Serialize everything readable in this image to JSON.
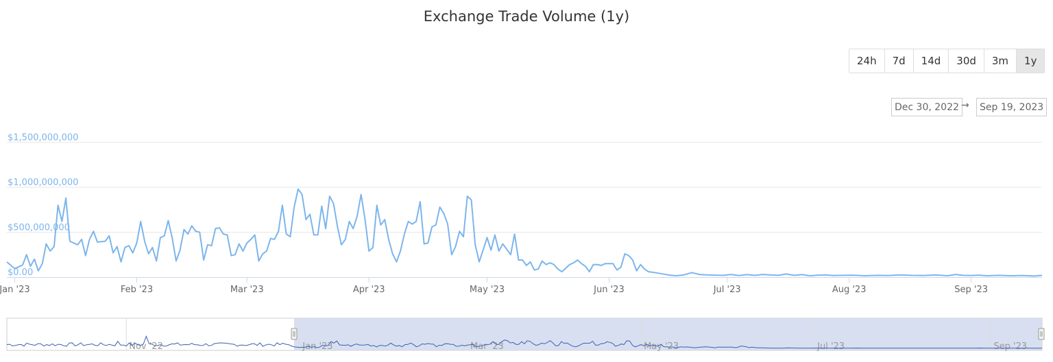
{
  "header": {
    "title": "Exchange Trade Volume (1y)"
  },
  "range_selector": {
    "buttons": [
      "24h",
      "7d",
      "14d",
      "30d",
      "3m",
      "1y"
    ],
    "active": "1y",
    "from": "Dec 30, 2022",
    "arrow": "→",
    "to": "Sep 19, 2023"
  },
  "colors": {
    "line": "#7cb5ec",
    "navigator_line": "#3a5fb0",
    "navigator_mask": "#d4dbef",
    "grid": "#e6e6e6"
  },
  "chart_data": {
    "type": "line",
    "title": "Exchange Trade Volume (1y)",
    "xlabel": "",
    "ylabel": "",
    "x_range": [
      "2022-12-30",
      "2023-09-19"
    ],
    "ylim": [
      0,
      1500000000
    ],
    "y_ticks": [
      0,
      500000000,
      1000000000,
      1500000000
    ],
    "y_tick_labels": [
      "$0.00",
      "$500,000,000",
      "$1,000,000,000",
      "$1,500,000,000"
    ],
    "x_ticks": [
      "2023-01-01",
      "2023-02-01",
      "2023-03-01",
      "2023-04-01",
      "2023-05-01",
      "2023-06-01",
      "2023-07-01",
      "2023-08-01",
      "2023-09-01"
    ],
    "x_tick_labels": [
      "Jan '23",
      "Feb '23",
      "Mar '23",
      "Apr '23",
      "May '23",
      "Jun '23",
      "Jul '23",
      "Aug '23",
      "Sep '23"
    ],
    "grid": true,
    "legend": "none",
    "series": [
      {
        "points": [
          [
            "2022-12-30",
            170000000
          ],
          [
            "2023-01-01",
            95000000
          ],
          [
            "2023-01-03",
            135000000
          ],
          [
            "2023-01-04",
            250000000
          ],
          [
            "2023-01-05",
            120000000
          ],
          [
            "2023-01-06",
            200000000
          ],
          [
            "2023-01-07",
            70000000
          ],
          [
            "2023-01-08",
            150000000
          ],
          [
            "2023-01-09",
            370000000
          ],
          [
            "2023-01-10",
            290000000
          ],
          [
            "2023-01-11",
            340000000
          ],
          [
            "2023-01-12",
            800000000
          ],
          [
            "2023-01-13",
            620000000
          ],
          [
            "2023-01-14",
            880000000
          ],
          [
            "2023-01-15",
            400000000
          ],
          [
            "2023-01-17",
            360000000
          ],
          [
            "2023-01-18",
            420000000
          ],
          [
            "2023-01-19",
            240000000
          ],
          [
            "2023-01-20",
            420000000
          ],
          [
            "2023-01-21",
            510000000
          ],
          [
            "2023-01-22",
            390000000
          ],
          [
            "2023-01-24",
            400000000
          ],
          [
            "2023-01-25",
            460000000
          ],
          [
            "2023-01-26",
            270000000
          ],
          [
            "2023-01-27",
            340000000
          ],
          [
            "2023-01-28",
            170000000
          ],
          [
            "2023-01-29",
            330000000
          ],
          [
            "2023-01-30",
            350000000
          ],
          [
            "2023-01-31",
            270000000
          ],
          [
            "2023-02-01",
            380000000
          ],
          [
            "2023-02-02",
            620000000
          ],
          [
            "2023-02-03",
            400000000
          ],
          [
            "2023-02-04",
            260000000
          ],
          [
            "2023-02-05",
            330000000
          ],
          [
            "2023-02-06",
            180000000
          ],
          [
            "2023-02-07",
            440000000
          ],
          [
            "2023-02-08",
            460000000
          ],
          [
            "2023-02-09",
            630000000
          ],
          [
            "2023-02-10",
            440000000
          ],
          [
            "2023-02-11",
            180000000
          ],
          [
            "2023-02-12",
            300000000
          ],
          [
            "2023-02-13",
            530000000
          ],
          [
            "2023-02-14",
            480000000
          ],
          [
            "2023-02-15",
            570000000
          ],
          [
            "2023-02-16",
            510000000
          ],
          [
            "2023-02-17",
            500000000
          ],
          [
            "2023-02-18",
            190000000
          ],
          [
            "2023-02-19",
            360000000
          ],
          [
            "2023-02-20",
            350000000
          ],
          [
            "2023-02-21",
            540000000
          ],
          [
            "2023-02-22",
            550000000
          ],
          [
            "2023-02-23",
            480000000
          ],
          [
            "2023-02-24",
            470000000
          ],
          [
            "2023-02-25",
            240000000
          ],
          [
            "2023-02-26",
            250000000
          ],
          [
            "2023-02-27",
            370000000
          ],
          [
            "2023-02-28",
            290000000
          ],
          [
            "2023-03-01",
            380000000
          ],
          [
            "2023-03-02",
            420000000
          ],
          [
            "2023-03-03",
            470000000
          ],
          [
            "2023-03-04",
            180000000
          ],
          [
            "2023-03-05",
            260000000
          ],
          [
            "2023-03-06",
            290000000
          ],
          [
            "2023-03-07",
            430000000
          ],
          [
            "2023-03-08",
            420000000
          ],
          [
            "2023-03-09",
            510000000
          ],
          [
            "2023-03-10",
            800000000
          ],
          [
            "2023-03-11",
            480000000
          ],
          [
            "2023-03-12",
            450000000
          ],
          [
            "2023-03-13",
            780000000
          ],
          [
            "2023-03-14",
            980000000
          ],
          [
            "2023-03-15",
            920000000
          ],
          [
            "2023-03-16",
            640000000
          ],
          [
            "2023-03-17",
            700000000
          ],
          [
            "2023-03-18",
            470000000
          ],
          [
            "2023-03-19",
            470000000
          ],
          [
            "2023-03-20",
            790000000
          ],
          [
            "2023-03-21",
            540000000
          ],
          [
            "2023-03-22",
            900000000
          ],
          [
            "2023-03-23",
            820000000
          ],
          [
            "2023-03-24",
            560000000
          ],
          [
            "2023-03-25",
            360000000
          ],
          [
            "2023-03-26",
            420000000
          ],
          [
            "2023-03-27",
            620000000
          ],
          [
            "2023-03-28",
            540000000
          ],
          [
            "2023-03-29",
            680000000
          ],
          [
            "2023-03-30",
            920000000
          ],
          [
            "2023-03-31",
            640000000
          ],
          [
            "2023-04-01",
            290000000
          ],
          [
            "2023-04-02",
            330000000
          ],
          [
            "2023-04-03",
            800000000
          ],
          [
            "2023-04-04",
            580000000
          ],
          [
            "2023-04-05",
            640000000
          ],
          [
            "2023-04-06",
            420000000
          ],
          [
            "2023-04-07",
            260000000
          ],
          [
            "2023-04-08",
            170000000
          ],
          [
            "2023-04-09",
            290000000
          ],
          [
            "2023-04-10",
            480000000
          ],
          [
            "2023-04-11",
            620000000
          ],
          [
            "2023-04-12",
            590000000
          ],
          [
            "2023-04-13",
            620000000
          ],
          [
            "2023-04-14",
            840000000
          ],
          [
            "2023-04-15",
            370000000
          ],
          [
            "2023-04-16",
            380000000
          ],
          [
            "2023-04-17",
            560000000
          ],
          [
            "2023-04-18",
            580000000
          ],
          [
            "2023-04-19",
            780000000
          ],
          [
            "2023-04-20",
            710000000
          ],
          [
            "2023-04-21",
            590000000
          ],
          [
            "2023-04-22",
            250000000
          ],
          [
            "2023-04-23",
            340000000
          ],
          [
            "2023-04-24",
            510000000
          ],
          [
            "2023-04-25",
            450000000
          ],
          [
            "2023-04-26",
            900000000
          ],
          [
            "2023-04-27",
            860000000
          ],
          [
            "2023-04-28",
            360000000
          ],
          [
            "2023-04-29",
            170000000
          ],
          [
            "2023-04-30",
            300000000
          ],
          [
            "2023-05-01",
            440000000
          ],
          [
            "2023-05-02",
            300000000
          ],
          [
            "2023-05-03",
            470000000
          ],
          [
            "2023-05-04",
            290000000
          ],
          [
            "2023-05-05",
            370000000
          ],
          [
            "2023-05-06",
            310000000
          ],
          [
            "2023-05-07",
            250000000
          ],
          [
            "2023-05-08",
            480000000
          ],
          [
            "2023-05-09",
            190000000
          ],
          [
            "2023-05-10",
            190000000
          ],
          [
            "2023-05-11",
            130000000
          ],
          [
            "2023-05-12",
            170000000
          ],
          [
            "2023-05-13",
            80000000
          ],
          [
            "2023-05-14",
            90000000
          ],
          [
            "2023-05-15",
            180000000
          ],
          [
            "2023-05-16",
            140000000
          ],
          [
            "2023-05-17",
            160000000
          ],
          [
            "2023-05-18",
            140000000
          ],
          [
            "2023-05-19",
            90000000
          ],
          [
            "2023-05-20",
            60000000
          ],
          [
            "2023-05-21",
            100000000
          ],
          [
            "2023-05-22",
            140000000
          ],
          [
            "2023-05-23",
            160000000
          ],
          [
            "2023-05-24",
            190000000
          ],
          [
            "2023-05-25",
            150000000
          ],
          [
            "2023-05-26",
            120000000
          ],
          [
            "2023-05-27",
            60000000
          ],
          [
            "2023-05-28",
            140000000
          ],
          [
            "2023-05-29",
            140000000
          ],
          [
            "2023-05-30",
            130000000
          ],
          [
            "2023-05-31",
            150000000
          ],
          [
            "2023-06-01",
            150000000
          ],
          [
            "2023-06-02",
            150000000
          ],
          [
            "2023-06-03",
            80000000
          ],
          [
            "2023-06-04",
            110000000
          ],
          [
            "2023-06-05",
            260000000
          ],
          [
            "2023-06-06",
            240000000
          ],
          [
            "2023-06-07",
            190000000
          ],
          [
            "2023-06-08",
            70000000
          ],
          [
            "2023-06-09",
            140000000
          ],
          [
            "2023-06-10",
            90000000
          ],
          [
            "2023-06-11",
            60000000
          ],
          [
            "2023-06-12",
            55000000
          ],
          [
            "2023-06-14",
            40000000
          ],
          [
            "2023-06-16",
            25000000
          ],
          [
            "2023-06-18",
            15000000
          ],
          [
            "2023-06-20",
            25000000
          ],
          [
            "2023-06-22",
            50000000
          ],
          [
            "2023-06-24",
            30000000
          ],
          [
            "2023-06-26",
            25000000
          ],
          [
            "2023-06-28",
            22000000
          ],
          [
            "2023-06-30",
            20000000
          ],
          [
            "2023-07-02",
            30000000
          ],
          [
            "2023-07-04",
            18000000
          ],
          [
            "2023-07-06",
            28000000
          ],
          [
            "2023-07-08",
            20000000
          ],
          [
            "2023-07-10",
            30000000
          ],
          [
            "2023-07-12",
            25000000
          ],
          [
            "2023-07-14",
            20000000
          ],
          [
            "2023-07-16",
            35000000
          ],
          [
            "2023-07-18",
            20000000
          ],
          [
            "2023-07-20",
            28000000
          ],
          [
            "2023-07-22",
            15000000
          ],
          [
            "2023-07-24",
            22000000
          ],
          [
            "2023-07-26",
            25000000
          ],
          [
            "2023-07-28",
            18000000
          ],
          [
            "2023-07-30",
            20000000
          ],
          [
            "2023-08-02",
            22000000
          ],
          [
            "2023-08-05",
            15000000
          ],
          [
            "2023-08-08",
            20000000
          ],
          [
            "2023-08-11",
            18000000
          ],
          [
            "2023-08-14",
            25000000
          ],
          [
            "2023-08-17",
            20000000
          ],
          [
            "2023-08-20",
            18000000
          ],
          [
            "2023-08-23",
            24000000
          ],
          [
            "2023-08-26",
            15000000
          ],
          [
            "2023-08-28",
            30000000
          ],
          [
            "2023-08-30",
            20000000
          ],
          [
            "2023-09-01",
            18000000
          ],
          [
            "2023-09-03",
            22000000
          ],
          [
            "2023-09-05",
            15000000
          ],
          [
            "2023-09-08",
            20000000
          ],
          [
            "2023-09-11",
            15000000
          ],
          [
            "2023-09-14",
            18000000
          ],
          [
            "2023-09-17",
            12000000
          ],
          [
            "2023-09-19",
            20000000
          ]
        ]
      }
    ],
    "navigator": {
      "x_range": [
        "2022-09-20",
        "2023-09-19"
      ],
      "selected_range": [
        "2022-12-30",
        "2023-09-19"
      ],
      "x_ticks": [
        "2022-11-01",
        "2023-01-01",
        "2023-03-01",
        "2023-05-01",
        "2023-07-01",
        "2023-09-01"
      ],
      "x_tick_labels": [
        "Nov '22",
        "Jan '23",
        "Mar '23",
        "May '23",
        "Jul '23",
        "Sep '23"
      ]
    }
  }
}
